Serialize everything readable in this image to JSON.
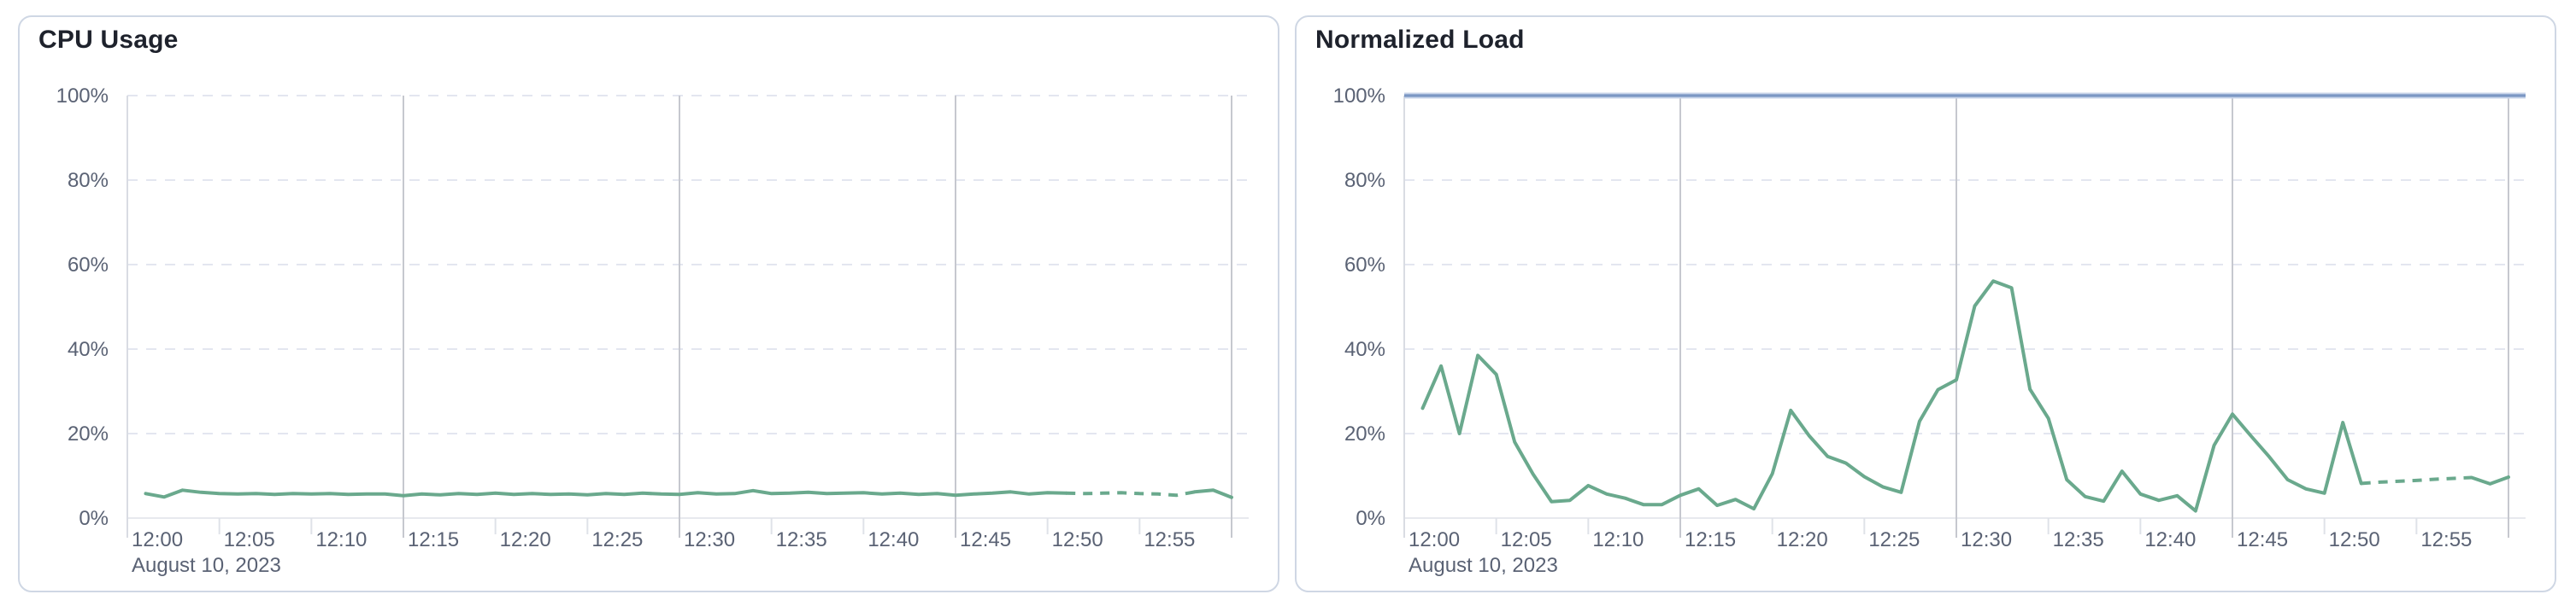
{
  "styles": {
    "background": "#ffffff",
    "card_border": "#cfd7e4",
    "title_color": "#1e222c",
    "label_color": "#5a6274",
    "series_green": "#6aa98d",
    "reference_blue": "#7b97c4",
    "reference_halo": "#c9d5ea",
    "grid_dashed": "#e3e6f0",
    "grid_major_vline": "#c6c8cf",
    "grid_left_axis_vline": "#d9dce3",
    "axis_zero_line": "#e7e9ee",
    "tick_minor": "#dfe2e8"
  },
  "chart_data": [
    {
      "type": "line",
      "name": "cpu-usage-chart",
      "title": "CPU Usage",
      "date_label": "August 10, 2023",
      "ylim": [
        0,
        100
      ],
      "y_ticks": [
        0,
        20,
        40,
        60,
        80,
        100
      ],
      "y_tick_labels": [
        "0%",
        "20%",
        "40%",
        "60%",
        "80%",
        "100%"
      ],
      "x_range_minutes": [
        0,
        60
      ],
      "x_tick_minutes": [
        0,
        5,
        10,
        15,
        20,
        25,
        30,
        35,
        40,
        45,
        50,
        55
      ],
      "x_tick_labels": [
        "12:00",
        "12:05",
        "12:10",
        "12:15",
        "12:20",
        "12:25",
        "12:30",
        "12:35",
        "12:40",
        "12:45",
        "12:50",
        "12:55"
      ],
      "major_vline_minutes": [
        0,
        15,
        30,
        45,
        60
      ],
      "grid": "dashed-horizontal",
      "legend": "none",
      "reference_lines": [],
      "series": [
        {
          "name": "cpu-usage",
          "color_key": "series_green",
          "start_minute": 1,
          "step_minutes": 1,
          "values": [
            5.8,
            5.0,
            6.6,
            6.1,
            5.8,
            5.7,
            5.8,
            5.6,
            5.8,
            5.7,
            5.8,
            5.6,
            5.7,
            5.7,
            5.3,
            5.7,
            5.5,
            5.8,
            5.6,
            5.9,
            5.6,
            5.8,
            5.6,
            5.7,
            5.5,
            5.8,
            5.6,
            5.9,
            5.7,
            5.6,
            6.0,
            5.7,
            5.8,
            6.5,
            5.8,
            5.9,
            6.1,
            5.8,
            5.9,
            6.0,
            5.7,
            5.9,
            5.6,
            5.8,
            5.4,
            5.7,
            5.9,
            6.2,
            5.7,
            6.0,
            5.9,
            5.8,
            5.9,
            6.0,
            5.8,
            5.7,
            5.4,
            6.2,
            6.6,
            4.9
          ],
          "segments": [
            {
              "from_minute": 1,
              "to_minute": 51,
              "style": "solid"
            },
            {
              "from_minute": 51,
              "to_minute": 58,
              "style": "dashed"
            },
            {
              "from_minute": 58,
              "to_minute": 60,
              "style": "solid"
            }
          ]
        }
      ]
    },
    {
      "type": "line",
      "name": "normalized-load-chart",
      "title": "Normalized Load",
      "date_label": "August 10, 2023",
      "ylim": [
        0,
        100
      ],
      "y_ticks": [
        0,
        20,
        40,
        60,
        80,
        100
      ],
      "y_tick_labels": [
        "0%",
        "20%",
        "40%",
        "60%",
        "80%",
        "100%"
      ],
      "x_range_minutes": [
        0,
        60
      ],
      "x_tick_minutes": [
        0,
        5,
        10,
        15,
        20,
        25,
        30,
        35,
        40,
        45,
        50,
        55
      ],
      "x_tick_labels": [
        "12:00",
        "12:05",
        "12:10",
        "12:15",
        "12:20",
        "12:25",
        "12:30",
        "12:35",
        "12:40",
        "12:45",
        "12:50",
        "12:55"
      ],
      "major_vline_minutes": [
        0,
        15,
        30,
        45,
        60
      ],
      "grid": "dashed-horizontal",
      "legend": "none",
      "reference_lines": [
        {
          "name": "load-limit",
          "value": 100,
          "color_key": "reference_blue",
          "halo_key": "reference_halo"
        }
      ],
      "series": [
        {
          "name": "normalized-load",
          "color_key": "series_green",
          "start_minute": 1,
          "step_minutes": 1,
          "values": [
            26,
            36,
            20,
            38.5,
            34,
            18,
            10.4,
            3.9,
            4.2,
            7.7,
            5.7,
            4.7,
            3.2,
            3.2,
            5.4,
            6.9,
            3.0,
            4.4,
            2.2,
            10.5,
            25.5,
            19.5,
            14.6,
            13.0,
            9.8,
            7.4,
            6.1,
            22.9,
            30.4,
            32.7,
            50.2,
            56.1,
            54.5,
            30.5,
            23.6,
            9.1,
            5.1,
            4.0,
            11.1,
            5.7,
            4.2,
            5.3,
            1.7,
            17.2,
            24.6,
            19.5,
            14.5,
            9.1,
            6.9,
            5.9,
            22.6,
            8.2,
            8.5,
            8.7,
            8.9,
            9.2,
            9.4,
            9.6,
            8.1,
            9.7
          ],
          "segments": [
            {
              "from_minute": 1,
              "to_minute": 52,
              "style": "solid"
            },
            {
              "from_minute": 52,
              "to_minute": 58,
              "style": "dashed"
            },
            {
              "from_minute": 58,
              "to_minute": 60,
              "style": "solid"
            }
          ]
        }
      ]
    }
  ]
}
